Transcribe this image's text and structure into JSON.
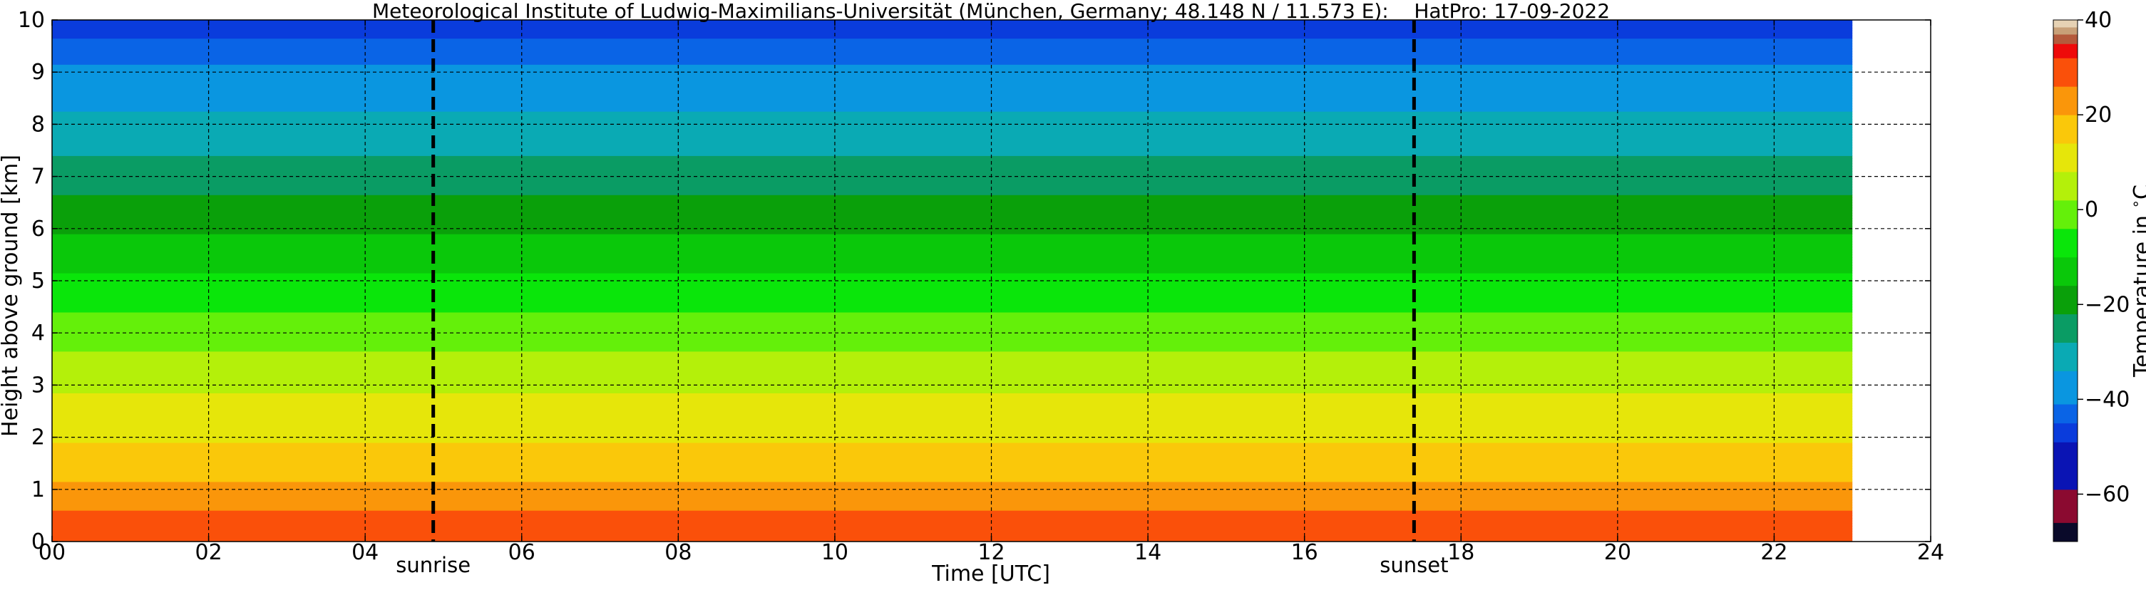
{
  "chart_data": {
    "type": "heatmap",
    "title": "Meteorological Institute of Ludwig-Maximilians-Universität (München, Germany; 48.148 N / 11.573 E):    HatPro: 17-09-2022",
    "xlabel": "Time [UTC]",
    "ylabel": "Height above ground [km]",
    "xlim": [
      0,
      24
    ],
    "ylim": [
      0,
      10
    ],
    "x_ticks": [
      0,
      2,
      4,
      6,
      8,
      10,
      12,
      14,
      16,
      18,
      20,
      22,
      24
    ],
    "x_tick_labels": [
      "00",
      "02",
      "04",
      "06",
      "08",
      "10",
      "12",
      "14",
      "16",
      "18",
      "20",
      "22",
      "24"
    ],
    "y_ticks": [
      0,
      1,
      2,
      3,
      4,
      5,
      6,
      7,
      8,
      9,
      10
    ],
    "y_tick_labels": [
      "0",
      "1",
      "2",
      "3",
      "4",
      "5",
      "6",
      "7",
      "8",
      "9",
      "10"
    ],
    "grid": true,
    "data_time_range": [
      0,
      23
    ],
    "vertical_markers": [
      {
        "label": "sunrise",
        "x": 4.87
      },
      {
        "label": "sunset",
        "x": 17.4
      }
    ],
    "colorbar": {
      "label": "Temperature in $^\\circ$C",
      "range": [
        -70,
        40
      ],
      "ticks": [
        40,
        20,
        0,
        -20,
        -40,
        -60
      ],
      "tick_labels": [
        "40",
        "20",
        "0",
        "−20",
        "−40",
        "−60"
      ],
      "bands": [
        {
          "from": -70,
          "to": -66,
          "color": "#0a0a2a"
        },
        {
          "from": -66,
          "to": -59,
          "color": "#8b0a30"
        },
        {
          "from": -59,
          "to": -49,
          "color": "#0a14b4"
        },
        {
          "from": -49,
          "to": -45,
          "color": "#0a3cdc"
        },
        {
          "from": -45,
          "to": -41,
          "color": "#0a64e6"
        },
        {
          "from": -41,
          "to": -34,
          "color": "#0a96e0"
        },
        {
          "from": -34,
          "to": -28,
          "color": "#0aaab4"
        },
        {
          "from": -28,
          "to": -22,
          "color": "#0a9c64"
        },
        {
          "from": -22,
          "to": -16,
          "color": "#0aa00a"
        },
        {
          "from": -16,
          "to": -10,
          "color": "#0ac80a"
        },
        {
          "from": -10,
          "to": -4,
          "color": "#0ae60a"
        },
        {
          "from": -4,
          "to": 2,
          "color": "#64f00a"
        },
        {
          "from": 2,
          "to": 8,
          "color": "#b4f00a"
        },
        {
          "from": 8,
          "to": 14,
          "color": "#e6e60a"
        },
        {
          "from": 14,
          "to": 20,
          "color": "#fac80a"
        },
        {
          "from": 20,
          "to": 26,
          "color": "#fa960a"
        },
        {
          "from": 26,
          "to": 32,
          "color": "#fa500a"
        },
        {
          "from": 32,
          "to": 35,
          "color": "#ee0a0a"
        },
        {
          "from": 35,
          "to": 37,
          "color": "#b45a3c"
        },
        {
          "from": 37,
          "to": 38.5,
          "color": "#c8a078"
        },
        {
          "from": 38.5,
          "to": 40,
          "color": "#e6d2b4"
        }
      ]
    },
    "temperature_profile": {
      "height_km": [
        0,
        0.5,
        1,
        1.5,
        2,
        2.5,
        3,
        3.5,
        4,
        4.5,
        5,
        5.5,
        6,
        6.5,
        7,
        7.5,
        8,
        8.5,
        9,
        9.5,
        10
      ],
      "temperature_c": [
        31,
        27,
        21,
        17,
        13,
        10,
        7,
        3,
        -1,
        -5,
        -9,
        -13,
        -17,
        -21,
        -25,
        -29,
        -32,
        -36,
        -40,
        -44,
        -48
      ]
    }
  }
}
